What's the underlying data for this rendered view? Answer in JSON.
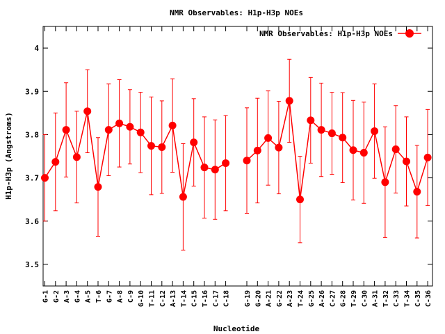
{
  "chart_data": {
    "type": "line",
    "title": "NMR Observables: H1p-H3p NOEs",
    "xlabel": "Nucleotide",
    "ylabel": "H1p-H3p (Angstroms)",
    "ylim": [
      3.45,
      4.05
    ],
    "yticks": [
      3.5,
      3.6,
      3.7,
      3.8,
      3.9,
      4
    ],
    "ytick_labels": [
      "3.5",
      "3.6",
      "3.7",
      "3.8",
      "3.9",
      "4"
    ],
    "legend": {
      "placement": "top-right",
      "label": "NMR Observables: H1p-H3p NOEs"
    },
    "colors": {
      "series": "#ff0000",
      "axis": "#000000"
    },
    "grid": false,
    "series": [
      {
        "name": "NMR Observables: H1p-H3p NOEs",
        "points": [
          {
            "label": "G-1",
            "y": 3.7,
            "err": 0.1
          },
          {
            "label": "G-2",
            "y": 3.737,
            "err": 0.113
          },
          {
            "label": "A-3",
            "y": 3.811,
            "err": 0.109
          },
          {
            "label": "G-4",
            "y": 3.748,
            "err": 0.106
          },
          {
            "label": "A-5",
            "y": 3.854,
            "err": 0.096
          },
          {
            "label": "T-6",
            "y": 3.679,
            "err": 0.114
          },
          {
            "label": "G-7",
            "y": 3.811,
            "err": 0.106
          },
          {
            "label": "A-8",
            "y": 3.826,
            "err": 0.101
          },
          {
            "label": "C-9",
            "y": 3.818,
            "err": 0.086
          },
          {
            "label": "G-10",
            "y": 3.805,
            "err": 0.093
          },
          {
            "label": "T-11",
            "y": 3.774,
            "err": 0.113
          },
          {
            "label": "C-12",
            "y": 3.771,
            "err": 0.107
          },
          {
            "label": "A-13",
            "y": 3.821,
            "err": 0.108
          },
          {
            "label": "T-14",
            "y": 3.656,
            "err": 0.123
          },
          {
            "label": "C-15",
            "y": 3.782,
            "err": 0.101
          },
          {
            "label": "T-16",
            "y": 3.724,
            "err": 0.117
          },
          {
            "label": "C-17",
            "y": 3.719,
            "err": 0.115
          },
          {
            "label": "C-18",
            "y": 3.734,
            "err": 0.11
          },
          {
            "label": "G-19",
            "y": 3.74,
            "err": 0.122
          },
          {
            "label": "G-20",
            "y": 3.763,
            "err": 0.121
          },
          {
            "label": "A-21",
            "y": 3.792,
            "err": 0.109
          },
          {
            "label": "G-22",
            "y": 3.77,
            "err": 0.107
          },
          {
            "label": "A-23",
            "y": 3.878,
            "err": 0.096
          },
          {
            "label": "T-24",
            "y": 3.65,
            "err": 0.1
          },
          {
            "label": "G-25",
            "y": 3.833,
            "err": 0.099
          },
          {
            "label": "A-26",
            "y": 3.811,
            "err": 0.108
          },
          {
            "label": "C-27",
            "y": 3.803,
            "err": 0.095
          },
          {
            "label": "G-28",
            "y": 3.793,
            "err": 0.104
          },
          {
            "label": "T-29",
            "y": 3.764,
            "err": 0.115
          },
          {
            "label": "C-30",
            "y": 3.758,
            "err": 0.117
          },
          {
            "label": "A-31",
            "y": 3.808,
            "err": 0.109
          },
          {
            "label": "T-32",
            "y": 3.69,
            "err": 0.128
          },
          {
            "label": "C-33",
            "y": 3.766,
            "err": 0.101
          },
          {
            "label": "T-34",
            "y": 3.738,
            "err": 0.103
          },
          {
            "label": "C-35",
            "y": 3.668,
            "err": 0.107
          },
          {
            "label": "C-36",
            "y": 3.747,
            "err": 0.111
          }
        ]
      }
    ]
  }
}
